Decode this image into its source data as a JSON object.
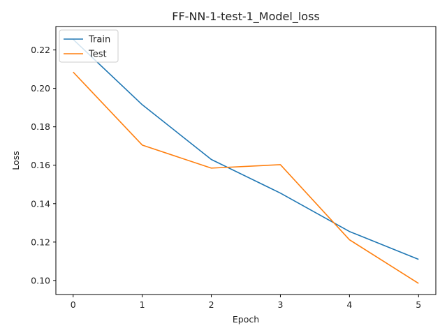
{
  "chart_data": {
    "type": "line",
    "title": "FF-NN-1-test-1_Model_loss",
    "xlabel": "Epoch",
    "ylabel": "Loss",
    "x": [
      0,
      1,
      2,
      3,
      4,
      5
    ],
    "xlim": [
      -0.25,
      5.25
    ],
    "ylim": [
      0.0927,
      0.2322
    ],
    "xticks": [
      "0",
      "1",
      "2",
      "3",
      "4",
      "5"
    ],
    "yticks": [
      "0.10",
      "0.12",
      "0.14",
      "0.16",
      "0.18",
      "0.20",
      "0.22"
    ],
    "grid": false,
    "legend_position": "upper left",
    "series": [
      {
        "name": "Train",
        "color": "#1f77b4",
        "values": [
          0.2255,
          0.1915,
          0.163,
          0.1455,
          0.1255,
          0.111
        ]
      },
      {
        "name": "Test",
        "color": "#ff7f0e",
        "values": [
          0.2085,
          0.1705,
          0.1585,
          0.1603,
          0.1212,
          0.0985
        ]
      }
    ]
  }
}
